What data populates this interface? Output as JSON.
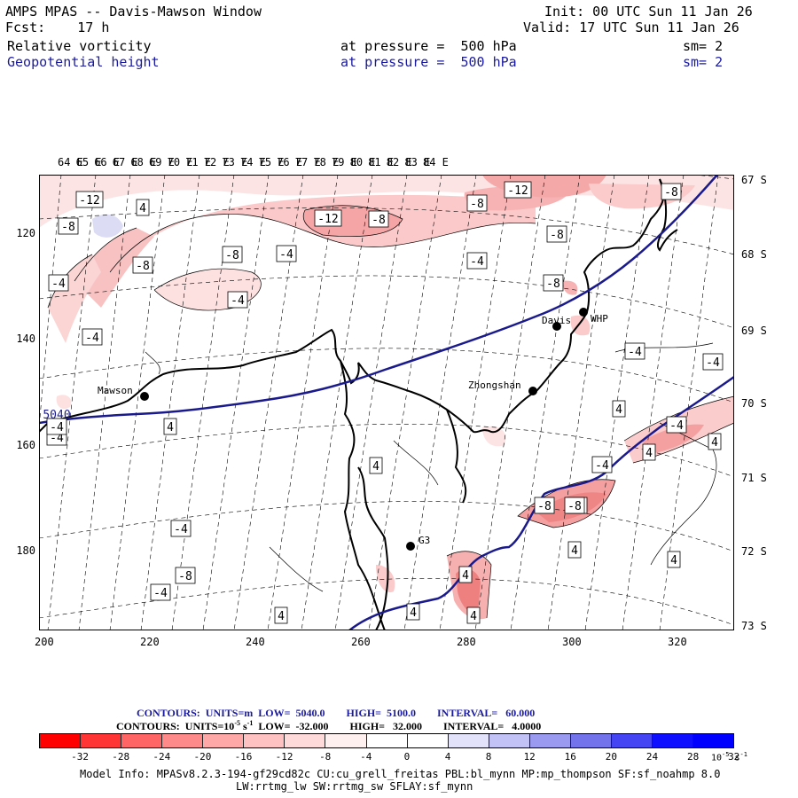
{
  "header": {
    "title": "AMPS MPAS -- Davis-Mawson Window",
    "fcst_label": "Fcst:",
    "fcst_value": "17 h",
    "init": "Init: 00 UTC Sun 11 Jan 26",
    "valid": "Valid: 17 UTC Sun 11 Jan 26",
    "field1": "Relative vorticity",
    "field1_level": "at pressure =  500 hPa",
    "field1_sm": "sm= 2",
    "field2": "Geopotential height",
    "field2_level": "at pressure =  500 hPa",
    "field2_sm": "sm= 2"
  },
  "map": {
    "lon_labels": [
      "64 E",
      "65 E",
      "66 E",
      "67 E",
      "68 E",
      "69 E",
      "70 E",
      "71 E",
      "72 E",
      "73 E",
      "74 E",
      "75 E",
      "76 E",
      "77 E",
      "78 E",
      "79 E",
      "80 E",
      "81 E",
      "82 E",
      "83 E",
      "84 E"
    ],
    "lat_labels": [
      "67 S",
      "68 S",
      "69 S",
      "70 S",
      "71 S",
      "72 S",
      "73 S"
    ],
    "x_ticks": [
      "200",
      "220",
      "240",
      "260",
      "280",
      "300",
      "320"
    ],
    "y_ticks": [
      "120",
      "140",
      "160",
      "180"
    ],
    "stations": [
      {
        "name": "Mawson"
      },
      {
        "name": "Davis"
      },
      {
        "name": "WHP"
      },
      {
        "name": "Zhongshan"
      },
      {
        "name": "G3"
      }
    ],
    "contour_labels": [
      "-12",
      "-8",
      "4",
      "-8",
      "-8",
      "-4",
      "-4",
      "-12",
      "-8",
      "-8",
      "-4",
      "-8",
      "-8",
      "-12",
      "-8",
      "-4",
      "-4",
      "-4",
      "-4",
      "4",
      "4",
      "-4",
      "4",
      "-4",
      "4",
      "-8",
      "-4",
      "4",
      "-4",
      "-8",
      "-4",
      "4",
      "4",
      "4",
      "4",
      "4",
      "-8",
      "4",
      "-4",
      "-4",
      "5040"
    ],
    "height_contour_value": "5040",
    "colors": {
      "height_contour": "#1a1a8c",
      "coast": "#000000",
      "neg_fill_light": "#fde0e0",
      "neg_fill_mid": "#f7b3b3",
      "neg_fill_dark": "#ee8080",
      "pos_fill": "#dcdcf5"
    }
  },
  "contours": {
    "line1": "CONTOURS:  UNITS=m  LOW=  5040.0        HIGH=  5100.0        INTERVAL=   60.000",
    "line2": "CONTOURS:  UNITS=10",
    "line2_exp": "-5",
    "line2_rest": " s",
    "line2_exp2": "-1",
    "line2_tail": "  LOW=  -32.000        HIGH=   32.000        INTERVAL=   4.0000"
  },
  "colorbar": {
    "colors": [
      "#ff0000",
      "#ff3535",
      "#ff6565",
      "#ff8a8a",
      "#ffa8a8",
      "#ffc2c2",
      "#ffdada",
      "#fff0f0",
      "#ffffff",
      "#ffffff",
      "#e2e2fb",
      "#c2c2f7",
      "#9a9af1",
      "#7373ec",
      "#4545f3",
      "#0f0fff",
      "#0000ff"
    ],
    "labels": [
      "-32",
      "-28",
      "-24",
      "-20",
      "-16",
      "-12",
      "-8",
      "-4",
      "0",
      "4",
      "8",
      "12",
      "16",
      "20",
      "24",
      "28",
      "32"
    ],
    "units": "10",
    "units_exp": "-5",
    "units_s": " s",
    "units_exp2": "-1"
  },
  "model_info": {
    "line1": "Model Info: MPASv8.2.3-194-gf29cd82c CU:cu_grell_freitas PBL:bl_mynn MP:mp_thompson SF:sf_noahmp 8.0",
    "line2": "LW:rrtmg_lw SW:rrtmg_sw SFLAY:sf_mynn"
  }
}
